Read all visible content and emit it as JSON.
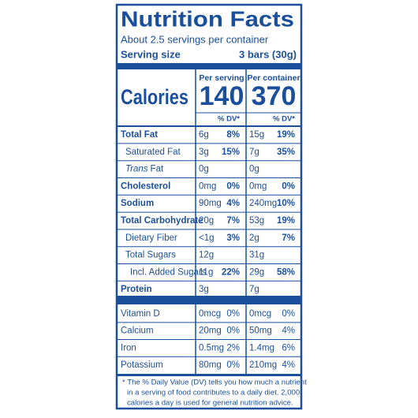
{
  "title": "Nutrition Facts",
  "servings": "About 2.5 servings per container",
  "serving_size_label": "Serving size",
  "serving_size_value": "3 bars (30g)",
  "calories_label": "Calories",
  "columns": [
    {
      "header": "Per serving",
      "calories": "140",
      "dv_header": "% DV*"
    },
    {
      "header": "Per container",
      "calories": "370",
      "dv_header": "% DV*"
    }
  ],
  "rows": [
    {
      "name": "Total Fat",
      "serving": "6g",
      "serving_dv": "8%",
      "container": "15g",
      "container_dv": "19%"
    },
    {
      "name": "Saturated Fat",
      "serving": "3g",
      "serving_dv": "15%",
      "container": "7g",
      "container_dv": "35%"
    },
    {
      "name_italic": "Trans",
      "name": "Fat",
      "serving": "0g",
      "container": "0g"
    },
    {
      "name": "Cholesterol",
      "serving": "0mg",
      "serving_dv": "0%",
      "container": "0mg",
      "container_dv": "0%"
    },
    {
      "name": "Sodium",
      "serving": "90mg",
      "serving_dv": "4%",
      "container": "240mg",
      "container_dv": "10%"
    },
    {
      "name": "Total Carbohydrate",
      "serving": "20g",
      "serving_dv": "7%",
      "container": "53g",
      "container_dv": "19%"
    },
    {
      "name": "Dietary Fiber",
      "serving": "<1g",
      "serving_dv": "3%",
      "container": "2g",
      "container_dv": "7%"
    },
    {
      "name": "Total Sugars",
      "serving": "12g",
      "container": "31g"
    },
    {
      "name": "Incl. Added Sugars",
      "serving": "11g",
      "serving_dv": "22%",
      "container": "29g",
      "container_dv": "58%"
    },
    {
      "name": "Protein",
      "serving": "3g",
      "container": "7g"
    }
  ],
  "vitamins": [
    {
      "name": "Vitamin D",
      "serving": "0mcg",
      "serving_dv": "0%",
      "container": "0mcg",
      "container_dv": "0%"
    },
    {
      "name": "Calcium",
      "serving": "20mg",
      "serving_dv": "0%",
      "container": "50mg",
      "container_dv": "4%"
    },
    {
      "name": "Iron",
      "serving": "0.5mg",
      "serving_dv": "2%",
      "container": "1.4mg",
      "container_dv": "6%"
    },
    {
      "name": "Potassium",
      "serving": "80mg",
      "serving_dv": "0%",
      "container": "210mg",
      "container_dv": "4%"
    }
  ],
  "footnote": [
    "* The % Daily Value (DV) tells you how much a nutrient",
    "in a serving of food contributes to a daily diet. 2,000",
    "calories a day is used for general nutrition advice."
  ]
}
